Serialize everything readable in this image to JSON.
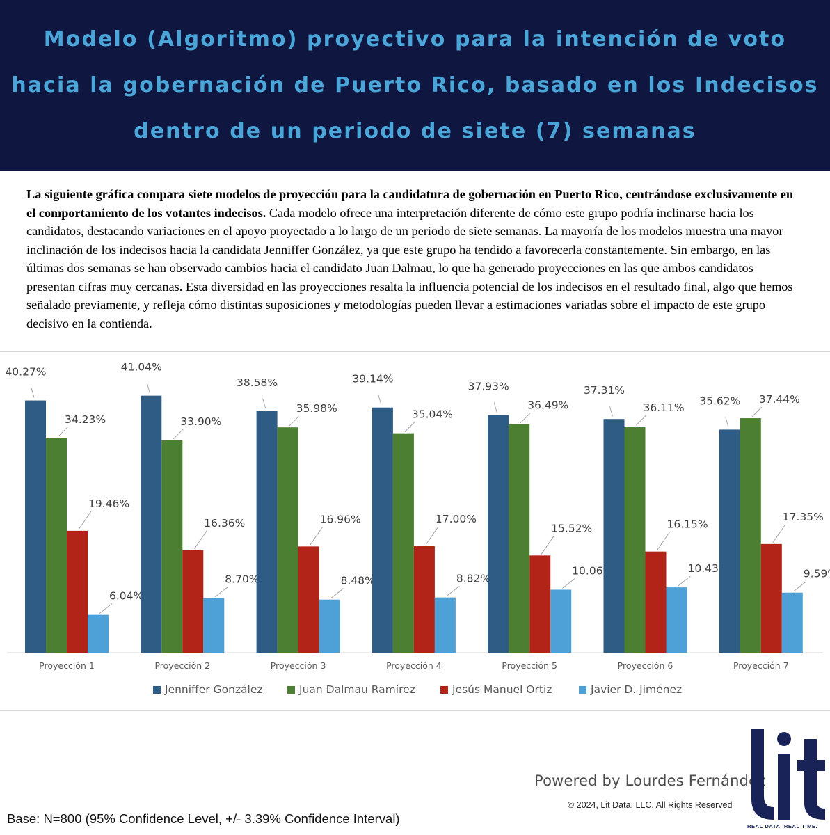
{
  "header": {
    "title": "Modelo (Algoritmo) proyectivo para la intención de voto hacia la gobernación de Puerto Rico, basado en los Indecisos dentro de un periodo de siete (7) semanas"
  },
  "intro": {
    "bold_text": "La siguiente gráfica compara siete modelos de proyección para la candidatura de gobernación en Puerto Rico, centrándose exclusivamente en el comportamiento de los votantes indecisos.",
    "body_text": " Cada modelo ofrece una interpretación diferente de cómo este grupo podría inclinarse hacia los candidatos, destacando variaciones en el apoyo proyectado a lo largo de un periodo de siete semanas. La mayoría de los modelos muestra una mayor inclinación de los indecisos hacia la candidata Jenniffer González, ya que este grupo ha tendido a favorecerla constantemente. Sin embargo, en las últimas dos semanas se han observado cambios hacia el candidato Juan Dalmau, lo que ha generado proyecciones en las que ambos candidatos presentan cifras muy cercanas. Esta diversidad en las proyecciones resalta la influencia potencial de los indecisos en el resultado final, algo que hemos señalado previamente, y refleja cómo distintas suposiciones y metodologías pueden llevar a estimaciones variadas sobre el impacto de este grupo decisivo en la contienda."
  },
  "chart_data": {
    "type": "bar",
    "categories": [
      "Proyección 1",
      "Proyección 2",
      "Proyección 3",
      "Proyección 4",
      "Proyección 5",
      "Proyección 6",
      "Proyección 7"
    ],
    "series": [
      {
        "name": "Jenniffer González",
        "color": "#2f5c85",
        "values": [
          40.27,
          41.04,
          38.58,
          39.14,
          37.93,
          37.31,
          35.62
        ]
      },
      {
        "name": "Juan Dalmau Ramírez",
        "color": "#4d7f32",
        "values": [
          34.23,
          33.9,
          35.98,
          35.04,
          36.49,
          36.11,
          37.44
        ]
      },
      {
        "name": "Jesús Manuel Ortiz",
        "color": "#b22418",
        "values": [
          19.46,
          16.36,
          16.96,
          17.0,
          15.52,
          16.15,
          17.35
        ]
      },
      {
        "name": "Javier D. Jiménez",
        "color": "#4ea1d6",
        "values": [
          6.04,
          8.7,
          8.48,
          8.82,
          10.06,
          10.43,
          9.59
        ]
      }
    ],
    "ylim": [
      0,
      42
    ],
    "value_suffix": "%",
    "grid": false,
    "legend": "bottom"
  },
  "footer": {
    "powered_by": "Powered by Lourdes Fernández",
    "copyright": "©  2024, Lit Data, LLC, All Rights Reserved",
    "base_note": "Base: N=800 (95% Confidence Level, +/- 3.39% Confidence Interval)",
    "logo_text": "lit",
    "logo_tagline": "REAL DATA. REAL TIME."
  },
  "colors": {
    "header_bg": "#0f1640",
    "header_text": "#4aa6d8",
    "logo": "#1a2357"
  }
}
